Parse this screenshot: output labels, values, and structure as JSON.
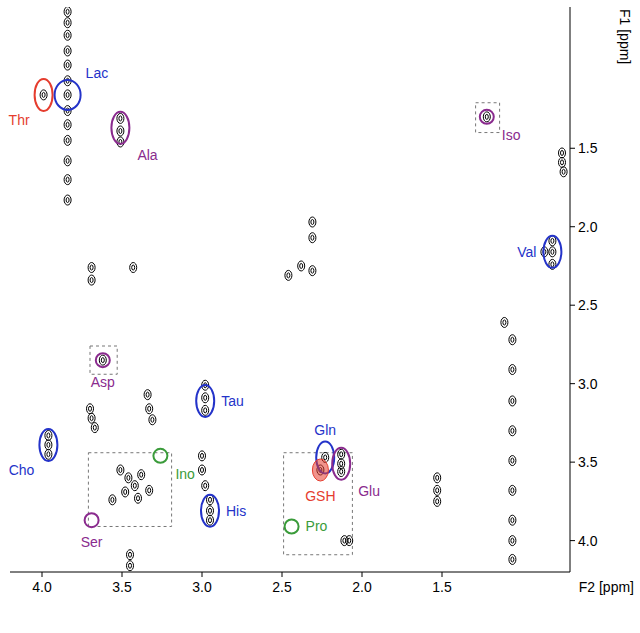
{
  "chart_data": {
    "type": "scatter",
    "marker": "contour",
    "color": "#000000",
    "x_label": "F2 [ppm]",
    "y_label": "F1 [ppm]",
    "xlim": [
      4.2,
      0.7
    ],
    "ylim": [
      0.6,
      4.2
    ],
    "xticks": [
      {
        "value": 4,
        "label": "4.0"
      },
      3.5,
      {
        "value": 3,
        "label": "3.0"
      },
      2.5,
      {
        "value": 2,
        "label": "2.0"
      },
      1.5
    ],
    "yticks": [
      1.5,
      {
        "value": 2,
        "label": "2.0"
      },
      2.5,
      {
        "value": 3,
        "label": "3.0"
      },
      3.5,
      {
        "value": 4,
        "label": "4.0"
      }
    ],
    "grid": false,
    "x": [
      3.84,
      3.84,
      3.84,
      3.84,
      3.84,
      3.84,
      3.84,
      3.84,
      3.84,
      3.84,
      3.84,
      3.84,
      3.84,
      3.99,
      3.51,
      3.51,
      3.51,
      1.22,
      0.75,
      0.75,
      0.74,
      0.81,
      0.81,
      0.81,
      0.86,
      2.31,
      2.31,
      2.38,
      2.31,
      2.46,
      3.43,
      3.69,
      3.69,
      3.62,
      3.7,
      3.69,
      3.67,
      3.34,
      3.33,
      3.31,
      2.98,
      2.98,
      2.98,
      3.0,
      3.0,
      2.98,
      3.96,
      3.96,
      3.96,
      3.51,
      3.46,
      3.42,
      3.38,
      3.48,
      3.4,
      3.33,
      3.56,
      3.45,
      3.45,
      2.95,
      2.95,
      2.95,
      2.23,
      2.26,
      2.13,
      2.13,
      2.13,
      2.11,
      2.08,
      1.53,
      1.53,
      1.53,
      1.06,
      1.06,
      1.06,
      1.06,
      1.06,
      1.06,
      1.06,
      1.06,
      1.06,
      1.11
    ],
    "values": [
      0.63,
      0.7,
      0.78,
      0.88,
      0.97,
      1.07,
      1.16,
      1.26,
      1.35,
      1.45,
      1.58,
      1.7,
      1.83,
      1.16,
      1.31,
      1.39,
      1.46,
      1.3,
      1.53,
      1.59,
      1.65,
      2.09,
      2.16,
      2.24,
      2.16,
      1.97,
      2.07,
      2.25,
      2.28,
      2.31,
      2.26,
      2.26,
      2.34,
      2.85,
      3.16,
      3.22,
      3.28,
      3.07,
      3.16,
      3.23,
      3.01,
      3.09,
      3.17,
      3.46,
      3.55,
      3.65,
      3.33,
      3.39,
      3.45,
      3.55,
      3.6,
      3.65,
      3.58,
      3.69,
      3.73,
      3.68,
      3.74,
      4.09,
      4.16,
      3.74,
      3.81,
      3.87,
      3.47,
      3.55,
      3.45,
      3.51,
      3.56,
      4.0,
      4.0,
      3.6,
      3.68,
      3.75,
      2.72,
      2.91,
      3.11,
      3.3,
      3.49,
      3.68,
      3.87,
      4.0,
      4.12,
      2.61
    ],
    "annotations": [
      {
        "text": "Thr",
        "x": 3.99,
        "y": 1.16,
        "color": "#e53d2e",
        "marker": "ellipse",
        "anchor": "below-left"
      },
      {
        "text": "Lac",
        "x": 3.84,
        "y": 1.16,
        "color": "#2433c9",
        "marker": "wide",
        "anchor": "above-right"
      },
      {
        "text": "Ala",
        "x": 3.51,
        "y": 1.37,
        "color": "#8a2b8e",
        "marker": "ellipse",
        "anchor": "below-right"
      },
      {
        "text": "Iso",
        "x": 1.22,
        "y": 1.3,
        "color": "#8a2b8e",
        "marker": "circle",
        "anchor": "below-right"
      },
      {
        "text": "Val",
        "x": 0.81,
        "y": 2.16,
        "color": "#2433c9",
        "marker": "ellipse",
        "anchor": "left"
      },
      {
        "text": "Asp",
        "x": 3.62,
        "y": 2.85,
        "color": "#8a2b8e",
        "marker": "circle",
        "anchor": "below"
      },
      {
        "text": "Tau",
        "x": 2.98,
        "y": 3.11,
        "color": "#2433c9",
        "marker": "ellipse",
        "anchor": "right"
      },
      {
        "text": "Cho",
        "x": 3.96,
        "y": 3.39,
        "color": "#2433c9",
        "marker": "ellipse",
        "anchor": "below-left"
      },
      {
        "text": "Ino",
        "x": 3.26,
        "y": 3.46,
        "color": "#3a9b3a",
        "marker": "circle",
        "anchor": "below-right"
      },
      {
        "text": "Ser",
        "x": 3.69,
        "y": 3.87,
        "color": "#8a2b8e",
        "marker": "circle",
        "anchor": "below"
      },
      {
        "text": "His",
        "x": 2.95,
        "y": 3.81,
        "color": "#2433c9",
        "marker": "ellipse",
        "anchor": "right"
      },
      {
        "text": "Gln",
        "x": 2.23,
        "y": 3.47,
        "color": "#2433c9",
        "marker": "ellipse",
        "anchor": "above"
      },
      {
        "text": "GSH",
        "x": 2.26,
        "y": 3.55,
        "color": "#e53d2e",
        "marker": "filled",
        "anchor": "below"
      },
      {
        "text": "Glu",
        "x": 2.13,
        "y": 3.51,
        "color": "#8a2b8e",
        "marker": "ellipse",
        "anchor": "below-right"
      },
      {
        "text": "Pro",
        "x": 2.44,
        "y": 3.91,
        "color": "#3a9b3a",
        "marker": "circle",
        "anchor": "right"
      }
    ],
    "boxes": [
      {
        "x": [
          1.29,
          1.14
        ],
        "y": [
          1.21,
          1.4
        ]
      },
      {
        "x": [
          3.7,
          3.53
        ],
        "y": [
          2.76,
          2.94
        ]
      },
      {
        "x": [
          3.71,
          3.19
        ],
        "y": [
          3.44,
          3.91
        ]
      },
      {
        "x": [
          2.49,
          2.06
        ],
        "y": [
          3.44,
          4.09
        ]
      }
    ]
  }
}
